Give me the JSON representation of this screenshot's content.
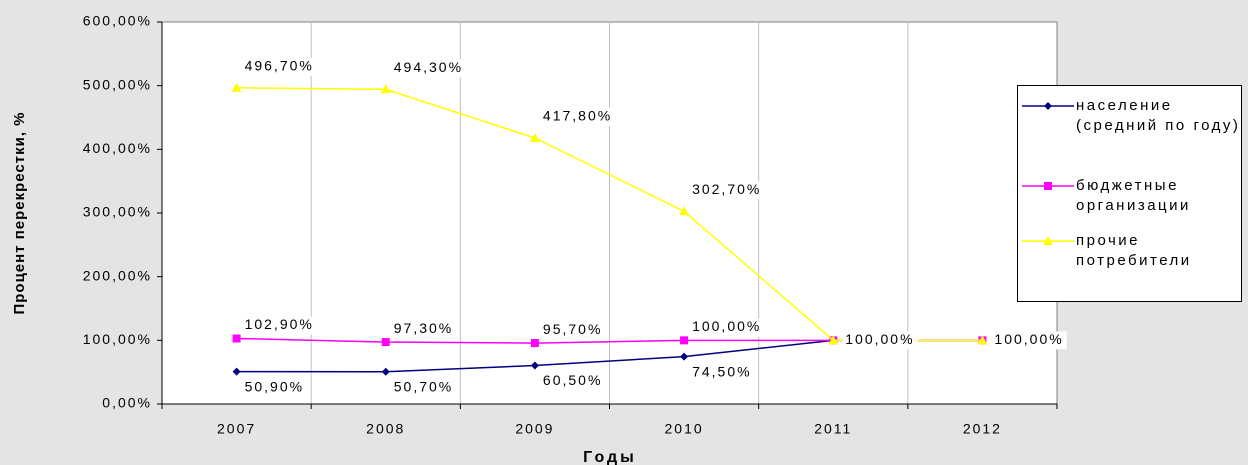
{
  "chart_data": {
    "type": "line",
    "y_label": "Процент перекрестки, %",
    "x_label": "Годы",
    "categories": [
      "2007",
      "2008",
      "2009",
      "2010",
      "2011",
      "2012"
    ],
    "ylim": [
      0,
      600
    ],
    "yticks": [
      {
        "value": 0,
        "label": "0,00%"
      },
      {
        "value": 100,
        "label": "100,00%"
      },
      {
        "value": 200,
        "label": "200,00%"
      },
      {
        "value": 300,
        "label": "300,00%"
      },
      {
        "value": 400,
        "label": "400,00%"
      },
      {
        "value": 500,
        "label": "500,00%"
      },
      {
        "value": 600,
        "label": "600,00%"
      }
    ],
    "xgrid": true,
    "legend": "right",
    "series": [
      {
        "name": "население (средний по году)",
        "color": "#000080",
        "marker": "diamond",
        "values": [
          50.9,
          50.7,
          60.5,
          74.5,
          100,
          100
        ],
        "value_labels": [
          "50,90%",
          "50,70%",
          "60,50%",
          "74,50%",
          null,
          null
        ]
      },
      {
        "name": "бюджетные организации",
        "color": "#ff00ff",
        "marker": "square",
        "values": [
          102.9,
          97.3,
          95.7,
          100,
          100,
          100
        ],
        "value_labels": [
          "102,90%",
          "97,30%",
          "95,70%",
          "100,00%",
          null,
          null
        ]
      },
      {
        "name": "прочие потребители",
        "color": "#ffff00",
        "marker": "triangle",
        "values": [
          496.7,
          494.3,
          417.8,
          302.7,
          100,
          100
        ],
        "value_labels": [
          "496,70%",
          "494,30%",
          "417,80%",
          "302,70%",
          "100,00%",
          "100,00%"
        ]
      }
    ]
  }
}
